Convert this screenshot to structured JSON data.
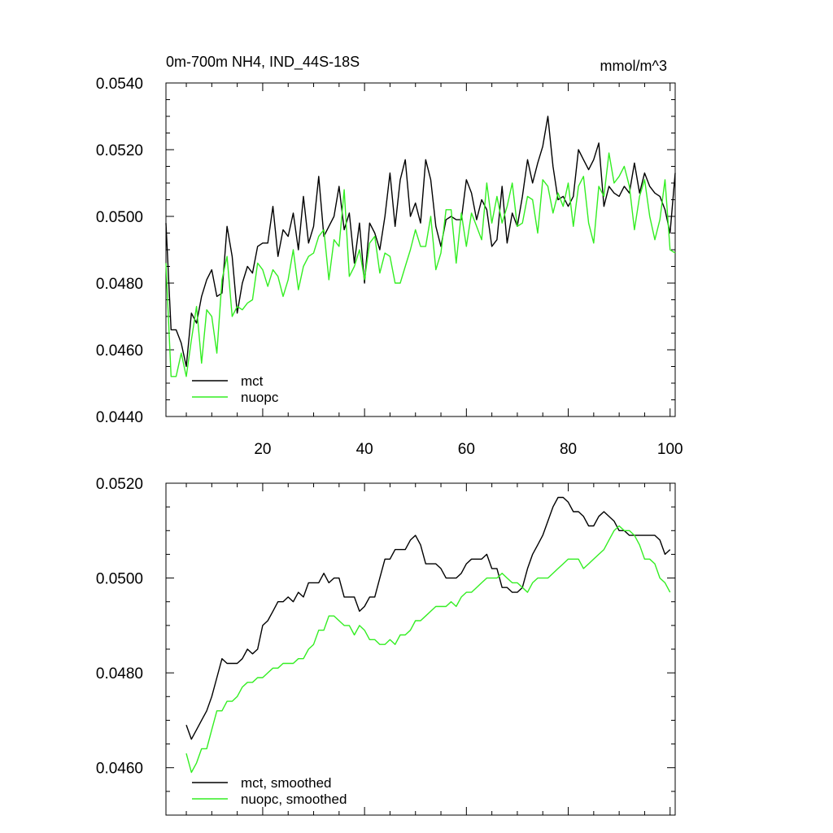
{
  "chart_data": [
    {
      "type": "line",
      "title": "0m-700m NH4, IND_44S-18S",
      "units_label": "mmol/m^3",
      "xlim": [
        1,
        101
      ],
      "ylim": [
        0.044,
        0.054
      ],
      "x_ticks": [
        20,
        40,
        60,
        80,
        100
      ],
      "y_ticks": [
        0.044,
        0.046,
        0.048,
        0.05,
        0.052,
        0.054
      ],
      "y_tick_labels": [
        "0.0440",
        "0.0460",
        "0.0480",
        "0.0500",
        "0.0520",
        "0.0540"
      ],
      "x_tick_labels": [
        "20",
        "40",
        "60",
        "80",
        "100"
      ],
      "legend_position": "bottom-left",
      "series": [
        {
          "name": "mct",
          "color": "#000000",
          "x_start": 1,
          "values": [
            0.0498,
            0.0466,
            0.0466,
            0.0462,
            0.0455,
            0.0471,
            0.0468,
            0.0476,
            0.0481,
            0.0484,
            0.0476,
            0.0477,
            0.0497,
            0.0488,
            0.0471,
            0.048,
            0.0485,
            0.0483,
            0.0491,
            0.0492,
            0.0492,
            0.0503,
            0.0488,
            0.0496,
            0.0494,
            0.0501,
            0.049,
            0.0506,
            0.0492,
            0.0497,
            0.0512,
            0.0494,
            0.0497,
            0.05,
            0.0509,
            0.0496,
            0.0501,
            0.0486,
            0.0498,
            0.048,
            0.0498,
            0.0495,
            0.049,
            0.05,
            0.0513,
            0.0497,
            0.0511,
            0.0517,
            0.05,
            0.0504,
            0.0498,
            0.0517,
            0.0511,
            0.0497,
            0.0491,
            0.0499,
            0.05,
            0.0499,
            0.0499,
            0.0511,
            0.0507,
            0.0499,
            0.0505,
            0.0502,
            0.0491,
            0.0493,
            0.0509,
            0.0492,
            0.0501,
            0.0497,
            0.0506,
            0.0517,
            0.051,
            0.0516,
            0.0521,
            0.053,
            0.0515,
            0.0505,
            0.0506,
            0.0503,
            0.0506,
            0.052,
            0.0517,
            0.0514,
            0.0517,
            0.0522,
            0.0503,
            0.0509,
            0.0507,
            0.0506,
            0.0509,
            0.0507,
            0.0516,
            0.0507,
            0.0513,
            0.0509,
            0.0507,
            0.0506,
            0.0502,
            0.0495,
            0.0513
          ]
        },
        {
          "name": "nuopc",
          "color": "#33ee22",
          "x_start": 1,
          "values": [
            0.0486,
            0.0452,
            0.0452,
            0.0459,
            0.0452,
            0.0463,
            0.0473,
            0.0456,
            0.0472,
            0.047,
            0.0459,
            0.0481,
            0.0488,
            0.047,
            0.0473,
            0.0472,
            0.0474,
            0.0475,
            0.0486,
            0.0484,
            0.0479,
            0.0484,
            0.0482,
            0.0476,
            0.0481,
            0.049,
            0.0478,
            0.0485,
            0.0488,
            0.0489,
            0.0494,
            0.0496,
            0.0481,
            0.0493,
            0.0491,
            0.0508,
            0.0482,
            0.0485,
            0.049,
            0.0481,
            0.0492,
            0.0494,
            0.0483,
            0.0489,
            0.0488,
            0.048,
            0.048,
            0.0485,
            0.049,
            0.0496,
            0.0491,
            0.0491,
            0.05,
            0.0484,
            0.0489,
            0.0502,
            0.0502,
            0.0486,
            0.0501,
            0.0491,
            0.0501,
            0.0497,
            0.0493,
            0.051,
            0.0498,
            0.0506,
            0.0498,
            0.0503,
            0.051,
            0.0497,
            0.0498,
            0.0506,
            0.0505,
            0.0495,
            0.0511,
            0.0509,
            0.0501,
            0.0507,
            0.0503,
            0.051,
            0.0497,
            0.0509,
            0.0512,
            0.0498,
            0.0492,
            0.0509,
            0.0506,
            0.0519,
            0.051,
            0.0512,
            0.0515,
            0.0509,
            0.0496,
            0.0506,
            0.0511,
            0.05,
            0.0493,
            0.0499,
            0.0511,
            0.049,
            0.0489
          ]
        }
      ]
    },
    {
      "type": "line",
      "xlim": [
        1,
        101
      ],
      "ylim": [
        0.045,
        0.052
      ],
      "x_ticks": [
        20,
        40,
        60,
        80,
        100
      ],
      "y_ticks": [
        0.046,
        0.048,
        0.05,
        0.052
      ],
      "y_tick_labels": [
        "0.0460",
        "0.0480",
        "0.0500",
        "0.0520"
      ],
      "legend_position": "bottom-left",
      "series": [
        {
          "name": "mct, smoothed",
          "color": "#000000",
          "x_start": 5,
          "values": [
            0.0469,
            0.0466,
            0.0468,
            0.047,
            0.0472,
            0.0475,
            0.0479,
            0.0483,
            0.0482,
            0.0482,
            0.0482,
            0.0483,
            0.0485,
            0.0484,
            0.0485,
            0.049,
            0.0491,
            0.0493,
            0.0495,
            0.0495,
            0.0496,
            0.0495,
            0.0497,
            0.0496,
            0.0499,
            0.0499,
            0.0499,
            0.0501,
            0.0499,
            0.05,
            0.05,
            0.0496,
            0.0496,
            0.0496,
            0.0493,
            0.0494,
            0.0496,
            0.0496,
            0.05,
            0.0504,
            0.0504,
            0.0506,
            0.0506,
            0.0506,
            0.0508,
            0.0509,
            0.0507,
            0.0503,
            0.0503,
            0.0503,
            0.0502,
            0.05,
            0.05,
            0.05,
            0.0501,
            0.0503,
            0.0504,
            0.0504,
            0.0504,
            0.0505,
            0.0502,
            0.0502,
            0.0498,
            0.0498,
            0.0497,
            0.0497,
            0.0498,
            0.0502,
            0.0505,
            0.0507,
            0.0509,
            0.0512,
            0.0515,
            0.0517,
            0.0517,
            0.0516,
            0.0514,
            0.0514,
            0.0513,
            0.0511,
            0.0511,
            0.0513,
            0.0514,
            0.0513,
            0.0512,
            0.051,
            0.051,
            0.0509,
            0.0509,
            0.0509,
            0.0509,
            0.0509,
            0.0509,
            0.0508,
            0.0505,
            0.0506
          ]
        },
        {
          "name": "nuopc, smoothed",
          "color": "#33ee22",
          "x_start": 5,
          "values": [
            0.0463,
            0.0459,
            0.0461,
            0.0464,
            0.0464,
            0.0468,
            0.0472,
            0.0472,
            0.0474,
            0.0474,
            0.0475,
            0.0477,
            0.0478,
            0.0478,
            0.0479,
            0.0479,
            0.048,
            0.0481,
            0.0481,
            0.0482,
            0.0482,
            0.0482,
            0.0483,
            0.0483,
            0.0485,
            0.0486,
            0.0489,
            0.0489,
            0.0492,
            0.0492,
            0.0491,
            0.049,
            0.049,
            0.0488,
            0.049,
            0.0489,
            0.0487,
            0.0487,
            0.0486,
            0.0486,
            0.0487,
            0.0486,
            0.0488,
            0.0488,
            0.0489,
            0.0491,
            0.0491,
            0.0492,
            0.0493,
            0.0494,
            0.0494,
            0.0494,
            0.0495,
            0.0494,
            0.0496,
            0.0497,
            0.0497,
            0.0498,
            0.0499,
            0.05,
            0.05,
            0.05,
            0.0501,
            0.05,
            0.0499,
            0.0499,
            0.0498,
            0.0497,
            0.0499,
            0.05,
            0.05,
            0.05,
            0.0501,
            0.0502,
            0.0503,
            0.0504,
            0.0504,
            0.0504,
            0.0502,
            0.0503,
            0.0504,
            0.0505,
            0.0506,
            0.0508,
            0.051,
            0.0511,
            0.051,
            0.051,
            0.0509,
            0.0507,
            0.0504,
            0.0504,
            0.0503,
            0.05,
            0.0499,
            0.0497
          ]
        }
      ]
    }
  ]
}
